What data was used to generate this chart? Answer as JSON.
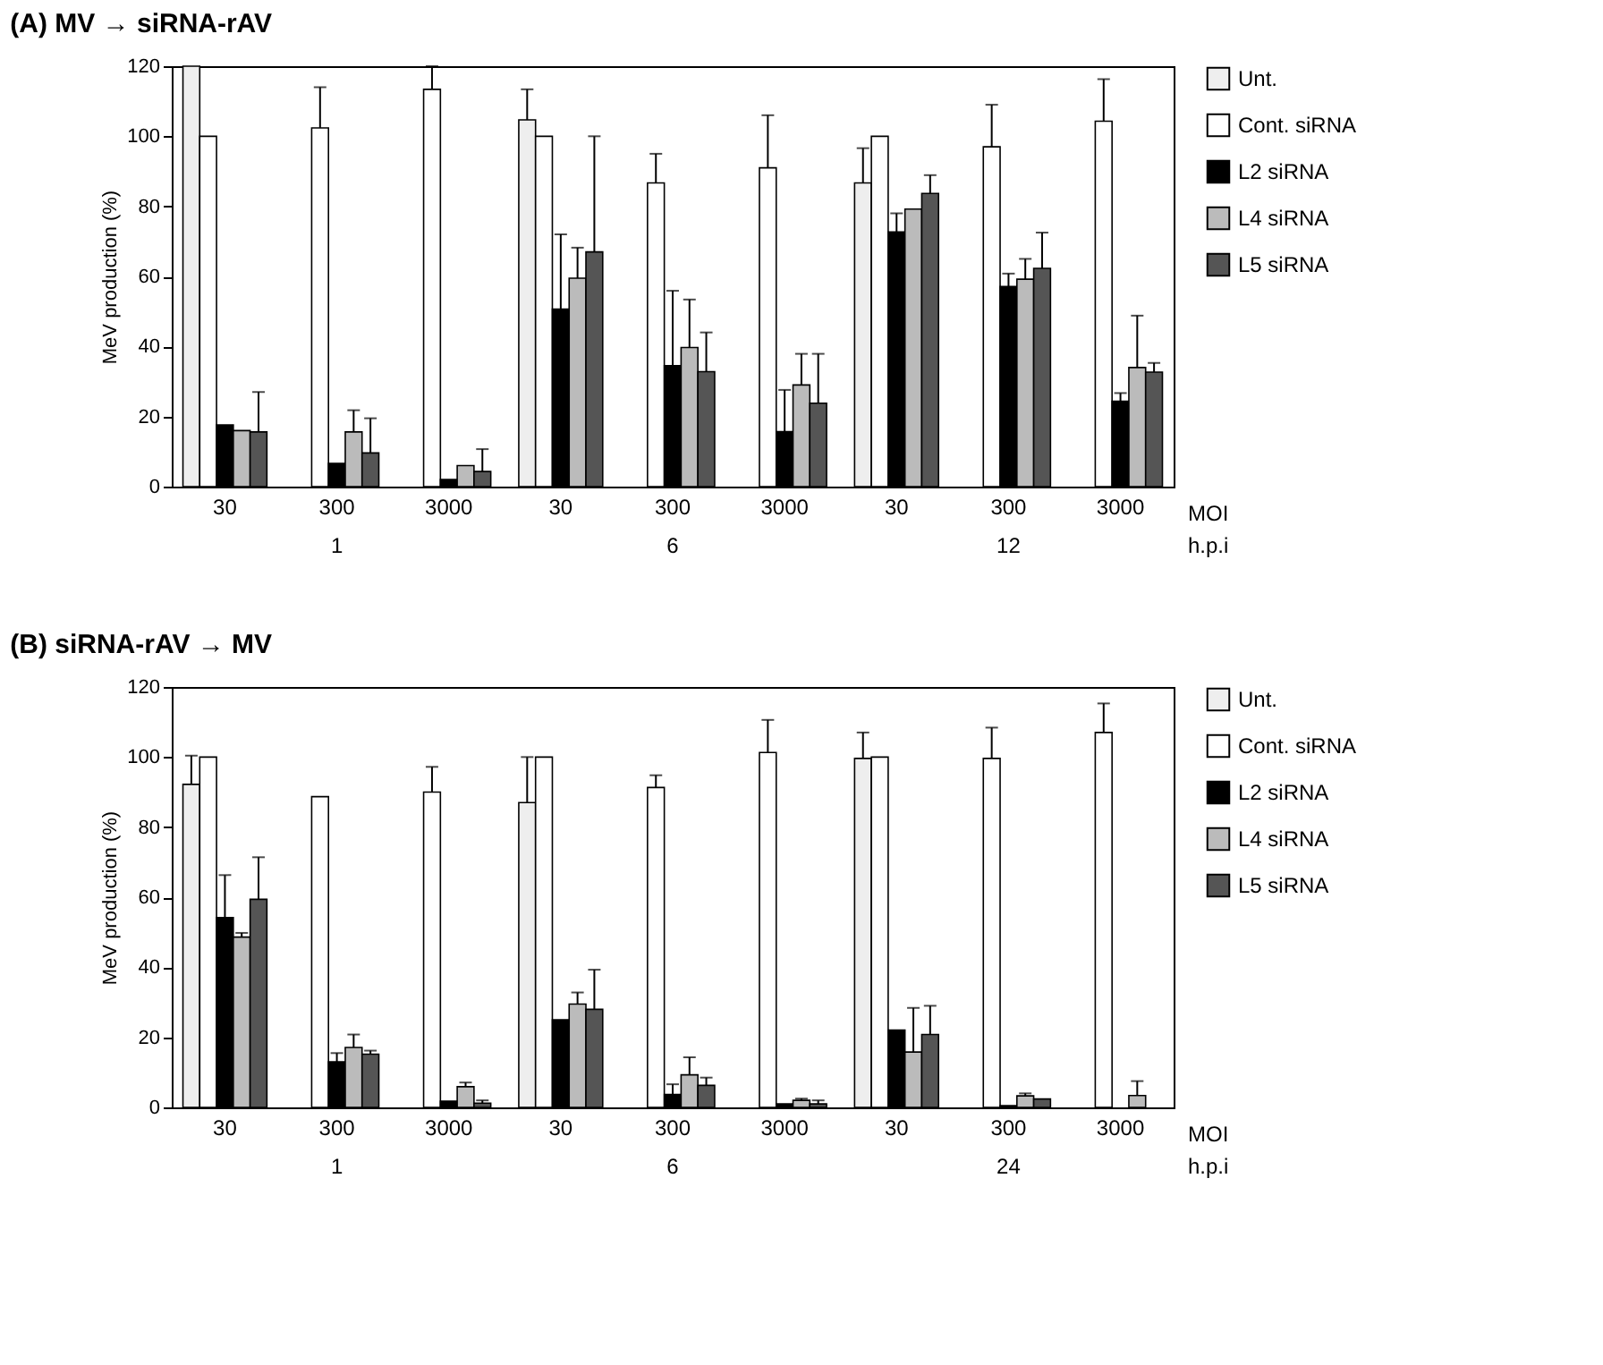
{
  "chart_data": [
    {
      "type": "bar",
      "title": "(A) MV → siRNA-rAV",
      "ylabel": "MeV production (%)",
      "categories": [
        "30",
        "300",
        "3000",
        "30",
        "300",
        "3000",
        "30",
        "300",
        "3000"
      ],
      "ylim": [
        0,
        120
      ],
      "yticks": [
        0,
        20,
        40,
        60,
        80,
        100,
        120
      ],
      "grid": false,
      "legend": "top right",
      "annotations": [
        "MOI",
        "1",
        "6",
        "12",
        "h.p.i"
      ],
      "series": [
        {
          "name": "Unt.",
          "color": "#eeeeee",
          "values": [
            120,
            null,
            null,
            104.7,
            null,
            null,
            86.7,
            null,
            null
          ],
          "errors": [
            null,
            null,
            null,
            [
              104.7,
              113.4
            ],
            null,
            null,
            [
              86.7,
              96.6
            ],
            null,
            null
          ]
        },
        {
          "name": "Cont. siRNA",
          "color": "#ffffff",
          "values": [
            100,
            102.4,
            113.4,
            100,
            86.7,
            91,
            100,
            97,
            104.3
          ],
          "errors": [
            null,
            [
              102.4,
              114
            ],
            [
              113.4,
              120
            ],
            null,
            [
              86.7,
              95
            ],
            [
              91,
              106
            ],
            null,
            [
              97,
              109
            ],
            [
              104.3,
              116.3
            ]
          ]
        },
        {
          "name": "L2 siRNA",
          "color": "#000000",
          "values": [
            17.6,
            6.6,
            2,
            50.7,
            34.5,
            15.7,
            72.7,
            57.1,
            24.4
          ],
          "errors": [
            null,
            null,
            null,
            [
              50.7,
              72
            ],
            [
              34.5,
              55.9
            ],
            [
              15.7,
              27.6
            ],
            [
              72.7,
              78
            ],
            [
              57.1,
              60.8
            ],
            [
              24.4,
              26.7
            ]
          ]
        },
        {
          "name": "L4 siRNA",
          "color": "#bbbbbb",
          "values": [
            16,
            15.6,
            6,
            59.5,
            39.7,
            29,
            79.2,
            59.2,
            34
          ],
          "errors": [
            null,
            [
              15.6,
              21.8
            ],
            null,
            [
              59.5,
              68.2
            ],
            [
              39.7,
              53.4
            ],
            [
              29,
              37.9
            ],
            null,
            [
              59.2,
              65
            ],
            [
              34,
              48.8
            ]
          ]
        },
        {
          "name": "L5 siRNA",
          "color": "#555555",
          "values": [
            15.6,
            9.6,
            4.3,
            67,
            32.8,
            23.8,
            83.7,
            62.3,
            32.7
          ],
          "errors": [
            [
              15.6,
              27
            ],
            [
              9.6,
              19.5
            ],
            [
              4.3,
              10.7
            ],
            [
              67,
              100
            ],
            [
              32.8,
              44
            ],
            [
              23.8,
              37.9
            ],
            [
              83.7,
              88.9
            ],
            [
              62.3,
              72.5
            ],
            [
              32.7,
              35.3
            ]
          ]
        }
      ]
    },
    {
      "type": "bar",
      "title": "(B) siRNA-rAV → MV",
      "ylabel": "MeV production (%)",
      "categories": [
        "30",
        "300",
        "3000",
        "30",
        "300",
        "3000",
        "30",
        "300",
        "3000"
      ],
      "ylim": [
        0,
        120
      ],
      "yticks": [
        0,
        20,
        40,
        60,
        80,
        100,
        120
      ],
      "grid": false,
      "legend": "top right",
      "annotations": [
        "MOI",
        "1",
        "6",
        "24",
        "h.p.i"
      ],
      "series": [
        {
          "name": "Unt.",
          "color": "#eeeeee",
          "values": [
            92.2,
            null,
            null,
            87,
            null,
            null,
            99.6,
            null,
            null
          ],
          "errors": [
            [
              92.2,
              100.4
            ],
            null,
            null,
            [
              87,
              100
            ],
            null,
            null,
            [
              99.6,
              107
            ],
            null,
            null
          ]
        },
        {
          "name": "Cont. siRNA",
          "color": "#ffffff",
          "values": [
            100,
            88.7,
            90,
            100,
            91.3,
            101.3,
            100,
            99.6,
            107
          ],
          "errors": [
            null,
            null,
            [
              90,
              97.2
            ],
            null,
            [
              91.3,
              94.8
            ],
            [
              101.3,
              110.6
            ],
            null,
            [
              99.6,
              108.4
            ],
            [
              107,
              115.3
            ]
          ]
        },
        {
          "name": "L2 siRNA",
          "color": "#000000",
          "values": [
            54.2,
            13,
            1.8,
            25,
            3.7,
            1,
            22.1,
            0.5,
            null
          ],
          "errors": [
            [
              54.2,
              66.3
            ],
            [
              13,
              15.5
            ],
            null,
            null,
            [
              3.7,
              6.6
            ],
            null,
            null,
            null,
            null
          ]
        },
        {
          "name": "L4 siRNA",
          "color": "#bbbbbb",
          "values": [
            48.6,
            17.1,
            5.9,
            29.5,
            9.3,
            2,
            15.8,
            3.3,
            3.4
          ],
          "errors": [
            [
              48.6,
              49.8
            ],
            [
              17.1,
              20.8
            ],
            [
              5.9,
              7.1
            ],
            [
              29.5,
              32.8
            ],
            [
              9.3,
              14.3
            ],
            [
              2,
              2.5
            ],
            [
              15.8,
              28.4
            ],
            [
              3.3,
              4
            ],
            [
              3.4,
              7.5
            ]
          ]
        },
        {
          "name": "L5 siRNA",
          "color": "#555555",
          "values": [
            59.4,
            15.2,
            1.2,
            28,
            6.3,
            1,
            20.8,
            2.4,
            null
          ],
          "errors": [
            [
              59.4,
              71.4
            ],
            [
              15.2,
              16.2
            ],
            [
              1.2,
              2
            ],
            [
              28,
              39.3
            ],
            [
              6.3,
              8.5
            ],
            [
              1,
              2
            ],
            [
              20.8,
              29
            ],
            null,
            null
          ]
        }
      ]
    }
  ]
}
